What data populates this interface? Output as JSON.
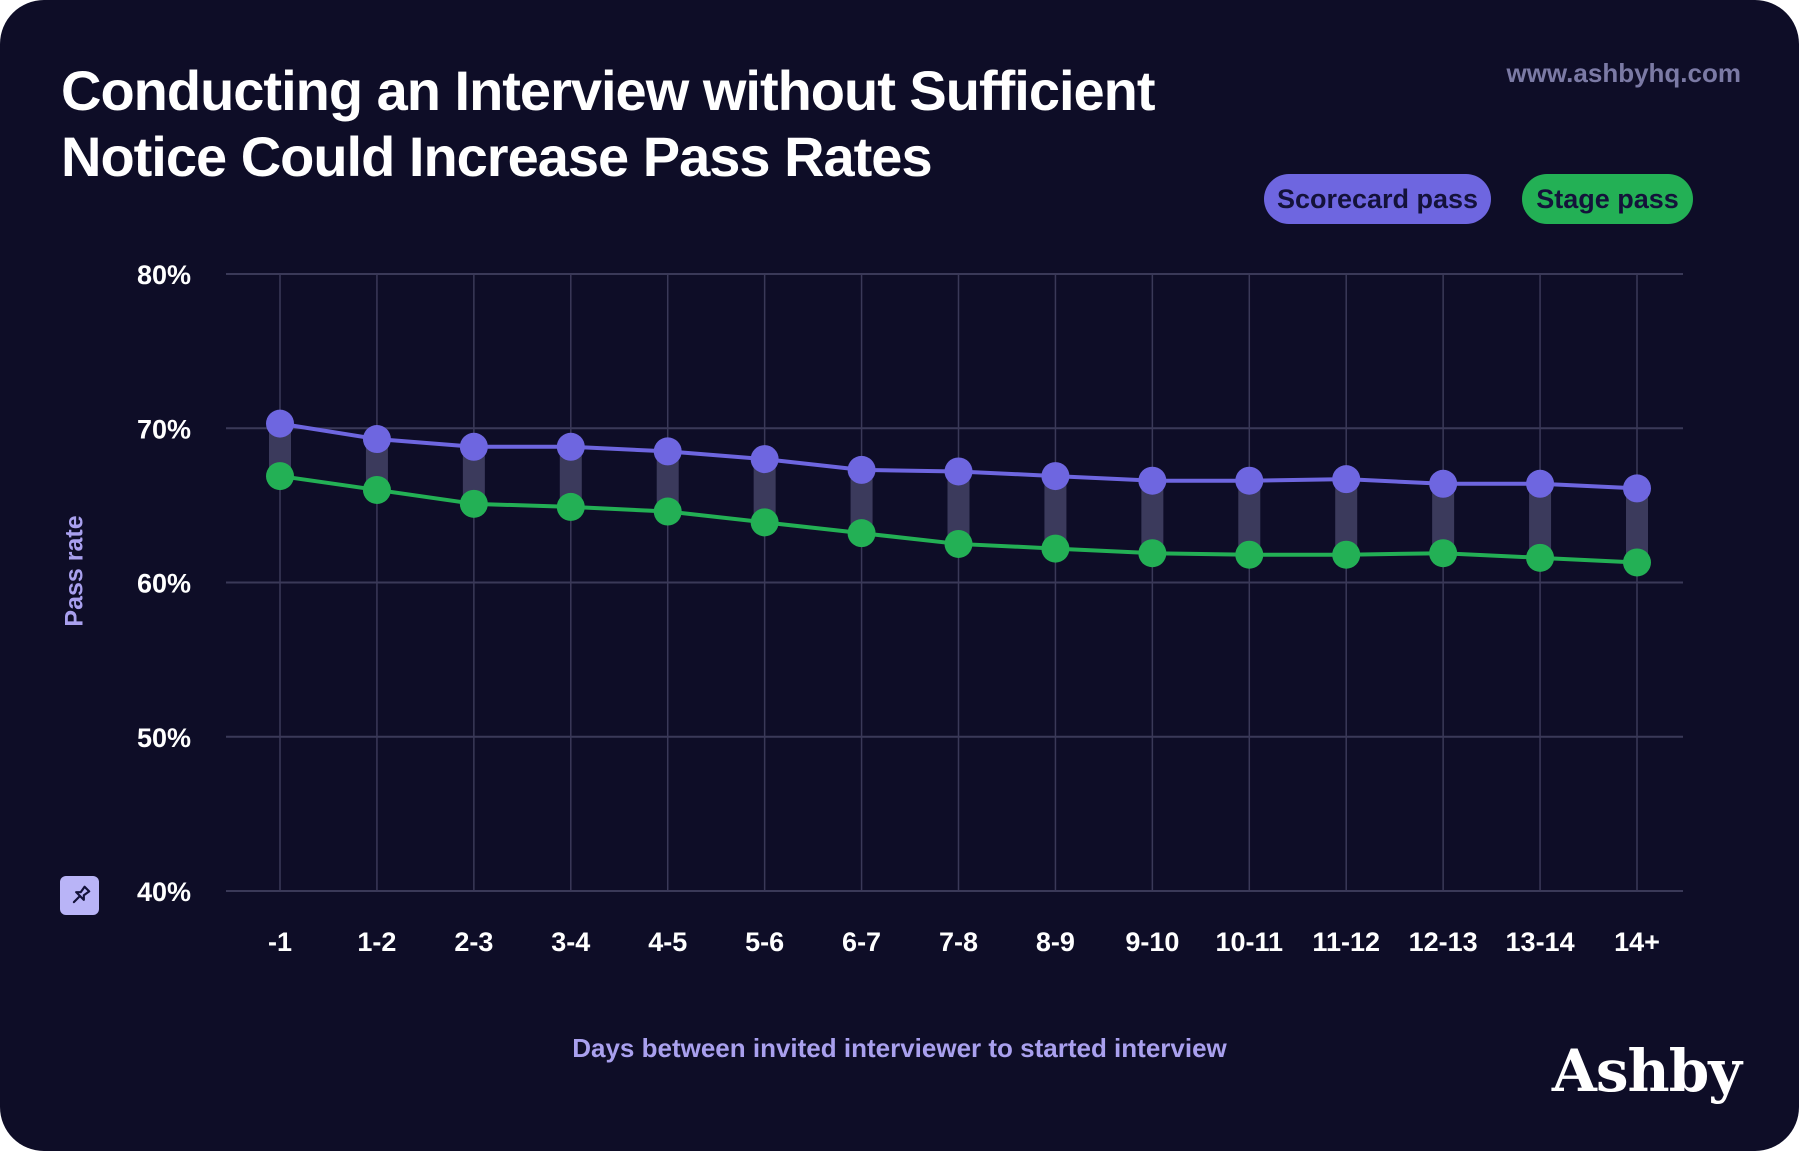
{
  "page": {
    "title": "Conducting an Interview without Sufficient Notice Could Increase Pass Rates",
    "website": "www.ashbyhq.com",
    "logo_text": "Ashby",
    "pin_icon": "pin-icon"
  },
  "colors": {
    "background": "#0e0d27",
    "scorecard": "#6e66e0",
    "stage": "#23b055",
    "grid": "#3a3958",
    "connector": "#3b3a5c",
    "axis_text": "#ffffff",
    "axis_label": "#a9a0ee"
  },
  "chart_data": {
    "type": "line",
    "title": "Conducting an Interview without Sufficient Notice Could Increase Pass Rates",
    "xlabel": "Days between invited interviewer to started interview",
    "ylabel": "Pass rate",
    "categories": [
      "-1",
      "1-2",
      "2-3",
      "3-4",
      "4-5",
      "5-6",
      "6-7",
      "7-8",
      "8-9",
      "9-10",
      "10-11",
      "11-12",
      "12-13",
      "13-14",
      "14+"
    ],
    "ylim": [
      40,
      80
    ],
    "yticks": [
      80,
      70,
      60,
      50,
      40
    ],
    "ytick_labels": [
      "80%",
      "70%",
      "60%",
      "50%",
      "40%"
    ],
    "grid": true,
    "legend_position": "top-right",
    "series": [
      {
        "name": "Scorecard pass",
        "values": [
          70.3,
          69.3,
          68.8,
          68.8,
          68.5,
          68.0,
          67.3,
          67.2,
          66.9,
          66.6,
          66.6,
          66.7,
          66.4,
          66.4,
          66.1
        ]
      },
      {
        "name": "Stage pass",
        "values": [
          66.9,
          66.0,
          65.1,
          64.9,
          64.6,
          63.9,
          63.2,
          62.5,
          62.2,
          61.9,
          61.8,
          61.8,
          61.9,
          61.6,
          61.3
        ]
      }
    ]
  }
}
